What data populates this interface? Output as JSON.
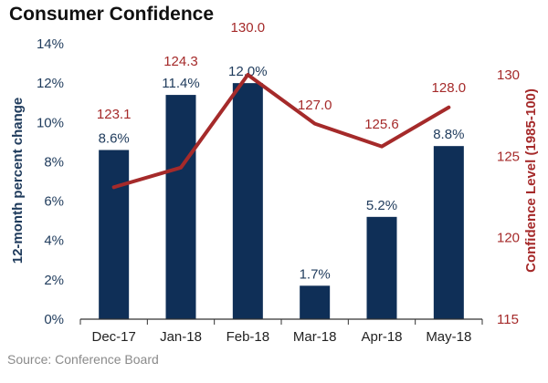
{
  "chart_data": {
    "type": "bar",
    "title": "Consumer Confidence",
    "source": "Source: Conference Board",
    "categories": [
      "Dec-17",
      "Jan-18",
      "Feb-18",
      "Mar-18",
      "Apr-18",
      "May-18"
    ],
    "series": [
      {
        "type": "bar",
        "axis": "left",
        "values": [
          8.6,
          11.4,
          12.0,
          1.7,
          5.2,
          8.8
        ],
        "labels": [
          "8.6%",
          "11.4%",
          "12.0%",
          "1.7%",
          "5.2%",
          "8.8%"
        ],
        "color": "#0f2f57"
      },
      {
        "type": "line",
        "axis": "right",
        "values": [
          123.1,
          124.3,
          130.0,
          127.0,
          125.6,
          128.0
        ],
        "labels": [
          "123.1",
          "124.3",
          "130.0",
          "127.0",
          "125.6",
          "128.0"
        ],
        "color": "#a52a2a"
      }
    ],
    "y_left": {
      "label": "12-month percent change",
      "range": [
        0,
        14
      ],
      "ticks": [
        0,
        2,
        4,
        6,
        8,
        10,
        12,
        14
      ],
      "tick_labels": [
        "0%",
        "2%",
        "4%",
        "6%",
        "8%",
        "10%",
        "12%",
        "14%"
      ]
    },
    "y_right": {
      "label": "Confidence Level (1985-100)",
      "range": [
        115,
        132
      ],
      "ticks": [
        115,
        120,
        125,
        130
      ],
      "tick_labels": [
        "115",
        "120",
        "125",
        "130"
      ]
    },
    "grid": false,
    "legend": "none"
  }
}
